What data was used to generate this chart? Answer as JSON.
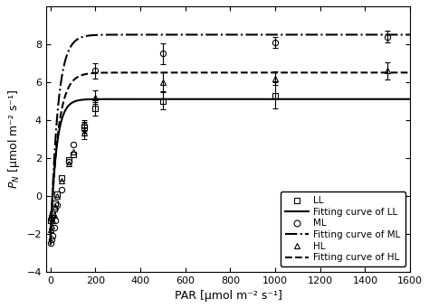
{
  "title": "",
  "xlabel": "PAR [μmol m⁻² s⁻¹]",
  "ylabel": "$P_N$ [μmol m⁻² s⁻¹]",
  "xlim": [
    -20,
    1600
  ],
  "ylim": [
    -4,
    10
  ],
  "xticks": [
    0,
    200,
    400,
    600,
    800,
    1000,
    1200,
    1400,
    1600
  ],
  "yticks": [
    -4,
    -2,
    0,
    2,
    4,
    6,
    8
  ],
  "LL_x": [
    0,
    5,
    10,
    15,
    20,
    30,
    50,
    80,
    100,
    150,
    200,
    500,
    1000
  ],
  "LL_y": [
    -1.3,
    -1.15,
    -0.95,
    -0.7,
    -0.4,
    0.1,
    0.95,
    1.9,
    2.2,
    3.6,
    4.6,
    5.0,
    5.3
  ],
  "LL_ye": [
    0.0,
    0.0,
    0.0,
    0.0,
    0.0,
    0.0,
    0.0,
    0.0,
    0.0,
    0.3,
    0.35,
    0.45,
    0.7
  ],
  "ML_x": [
    0,
    5,
    10,
    15,
    20,
    30,
    50,
    80,
    100,
    150,
    200,
    500,
    1000,
    1500
  ],
  "ML_y": [
    -2.5,
    -2.3,
    -2.1,
    -1.7,
    -1.3,
    -0.5,
    0.3,
    1.8,
    2.7,
    3.7,
    6.6,
    7.5,
    8.1,
    8.4
  ],
  "ML_ye": [
    0.0,
    0.0,
    0.0,
    0.0,
    0.0,
    0.0,
    0.0,
    0.0,
    0.0,
    0.3,
    0.4,
    0.55,
    0.3,
    0.3
  ],
  "HL_x": [
    0,
    5,
    10,
    15,
    20,
    30,
    50,
    80,
    100,
    150,
    200,
    500,
    1000,
    1500
  ],
  "HL_y": [
    -1.8,
    -1.6,
    -1.3,
    -1.0,
    -0.6,
    0.0,
    0.8,
    1.7,
    2.3,
    3.3,
    5.2,
    6.0,
    6.2,
    6.6
  ],
  "HL_ye": [
    0.0,
    0.0,
    0.0,
    0.0,
    0.0,
    0.0,
    0.0,
    0.0,
    0.0,
    0.3,
    0.35,
    0.5,
    0.35,
    0.45
  ],
  "LL_fit_params": [
    7.2,
    0.038,
    -2.1
  ],
  "ML_fit_params": [
    11.1,
    0.032,
    -2.6
  ],
  "HL_fit_params": [
    8.7,
    0.03,
    -2.2
  ],
  "line_color": "black",
  "marker_color": "black",
  "background_color": "white",
  "legend_labels": [
    "LL",
    "Fitting curve of LL",
    "ML",
    "Fitting curve of ML",
    "HL",
    "Fitting curve of HL"
  ]
}
